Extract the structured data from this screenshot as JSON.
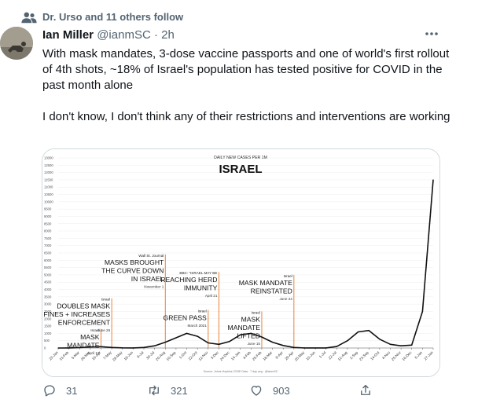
{
  "social_context": {
    "text": "Dr. Urso and 11 others follow"
  },
  "tweet": {
    "name": "Ian Miller",
    "handle": "@ianmSC",
    "sep": "·",
    "time": "2h",
    "text_p1": "With mask mandates, 3-dose vaccine passports and one of  world's first rollout of 4th shots, ~18% of Israel's population has tested positive for COVID in the past month alone",
    "text_p2": "I don't know, I don't think any of their restrictions and interventions are working"
  },
  "actions": {
    "replies": "31",
    "retweets": "321",
    "likes": "903"
  },
  "icons": {
    "social": "people-icon",
    "more": "more-icon",
    "reply": "reply-icon",
    "retweet": "retweet-icon",
    "like": "heart-icon",
    "share": "share-icon"
  },
  "colors": {
    "accent": "#1d9bf0",
    "text": "#0f1419",
    "secondary": "#536471",
    "annotation_line": "#e8823a"
  },
  "chart_data": {
    "type": "line",
    "title": "ISRAEL",
    "subtitle": "DAILY NEW CASES PER 1M",
    "source": "Source: Johns Hopkins CSSE Data · 7 day avg · @ianmSC",
    "y_ticks": [
      "13000",
      "12500",
      "12000",
      "11500",
      "11000",
      "10500",
      "10000",
      "9500",
      "9000",
      "8500",
      "8000",
      "7500",
      "7000",
      "6500",
      "6000",
      "5500",
      "5000",
      "4500",
      "4000",
      "3500",
      "3000",
      "2500",
      "2000",
      "1500",
      "1000",
      "500",
      "0"
    ],
    "ylim": [
      0,
      13000
    ],
    "x_ticks": [
      "23-Jan",
      "13-Feb",
      "5-Mar",
      "26-Mar",
      "16-Apr",
      "7-May",
      "28-May",
      "18-Jun",
      "9-Jul",
      "30-Jul",
      "20-Aug",
      "10-Sep",
      "1-Oct",
      "22-Oct",
      "12-Nov",
      "3-Dec",
      "24-Dec",
      "14-Jan",
      "4-Feb",
      "25-Feb",
      "18-Mar",
      "8-Apr",
      "29-Apr",
      "20-May",
      "10-Jun",
      "1-Jul",
      "22-Jul",
      "12-Aug",
      "2-Sep",
      "23-Sep",
      "14-Oct",
      "4-Nov",
      "25-Nov",
      "16-Dec",
      "6-Jan",
      "27-Jan"
    ],
    "series": [
      {
        "values": [
          0,
          5,
          25,
          70,
          90,
          40,
          10,
          5,
          40,
          150,
          400,
          700,
          1000,
          800,
          350,
          250,
          450,
          900,
          1000,
          750,
          400,
          170,
          40,
          5,
          3,
          5,
          100,
          500,
          1100,
          1200,
          600,
          250,
          150,
          200,
          2500,
          11500
        ]
      }
    ],
    "annotations": [
      {
        "x_index": 4,
        "value": 1300,
        "source": "Israel",
        "lines": [
          "MASK",
          "MANDATE"
        ],
        "date": "April 12"
      },
      {
        "x_index": 5,
        "value": 3400,
        "source": "Israel",
        "lines": [
          "DOUBLES MASK",
          "FINES + INCREASES",
          "ENFORCEMENT"
        ],
        "date": "June 26"
      },
      {
        "x_index": 10,
        "value": 6400,
        "source": "Wall St. Journal",
        "lines": [
          "MASKS BROUGHT",
          "THE CURVE DOWN",
          "IN ISRAEL"
        ],
        "date": "November 1"
      },
      {
        "x_index": 15,
        "value": 5200,
        "source": "BBC: \"ISRAEL MAY BE",
        "lines": [
          "REACHING HERD",
          "IMMUNITY"
        ],
        "date": "April 21"
      },
      {
        "x_index": 14,
        "value": 2600,
        "source": "Israel",
        "lines": [
          "GREEN PASS"
        ],
        "date": "March 2021"
      },
      {
        "x_index": 19,
        "value": 2500,
        "source": "Israel",
        "lines": [
          "MASK",
          "MANDATE",
          "LIFTED"
        ],
        "date": "June 15"
      },
      {
        "x_index": 22,
        "value": 5000,
        "source": "Israel",
        "lines": [
          "MASK MANDATE",
          "REINSTATED"
        ],
        "date": "June 24"
      }
    ]
  }
}
